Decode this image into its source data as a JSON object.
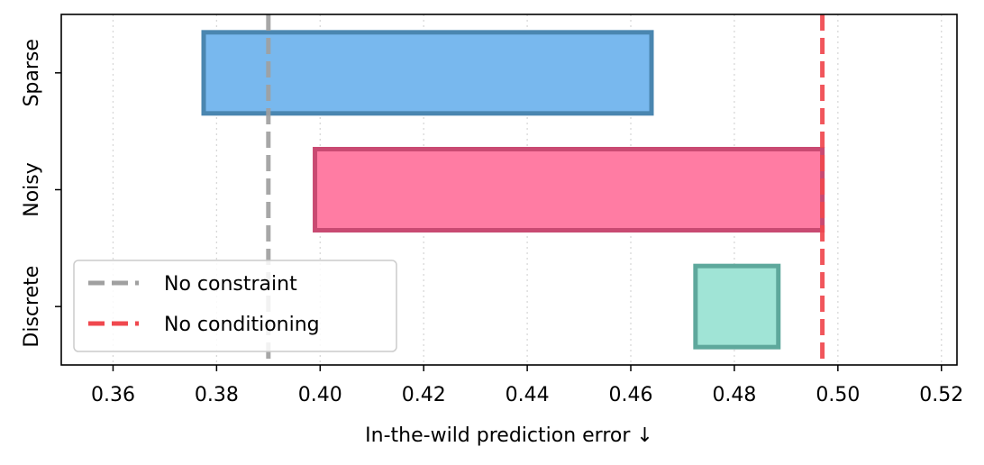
{
  "chart_data": {
    "type": "bar",
    "orientation": "horizontal",
    "title": "",
    "xlabel": "In-the-wild prediction error  ↓",
    "ylabel": "",
    "xlim": [
      0.35,
      0.523
    ],
    "xticks": [
      0.36,
      0.38,
      0.4,
      0.42,
      0.44,
      0.46,
      0.48,
      0.5,
      0.52
    ],
    "xtick_labels": [
      "0.36",
      "0.38",
      "0.40",
      "0.42",
      "0.44",
      "0.46",
      "0.48",
      "0.50",
      "0.52"
    ],
    "grid": "vertical dotted",
    "categories": [
      "Sparse",
      "Noisy",
      "Discrete"
    ],
    "ranges": [
      {
        "category": "Sparse",
        "start": 0.3775,
        "end": 0.464,
        "fill": "#78b8ee",
        "edge": "#4a86b0"
      },
      {
        "category": "Noisy",
        "start": 0.399,
        "end": 0.497,
        "fill": "#ff7ca3",
        "edge": "#c94a72"
      },
      {
        "category": "Discrete",
        "start": 0.4725,
        "end": 0.4885,
        "fill": "#a0e4d6",
        "edge": "#5ea89c"
      }
    ],
    "reference_lines": [
      {
        "name": "No constraint",
        "x": 0.39,
        "color": "#a0a0a0",
        "style": "dashed"
      },
      {
        "name": "No conditioning",
        "x": 0.497,
        "color": "#f0484e",
        "style": "dashed"
      }
    ],
    "legend_placement": "lower-left"
  }
}
